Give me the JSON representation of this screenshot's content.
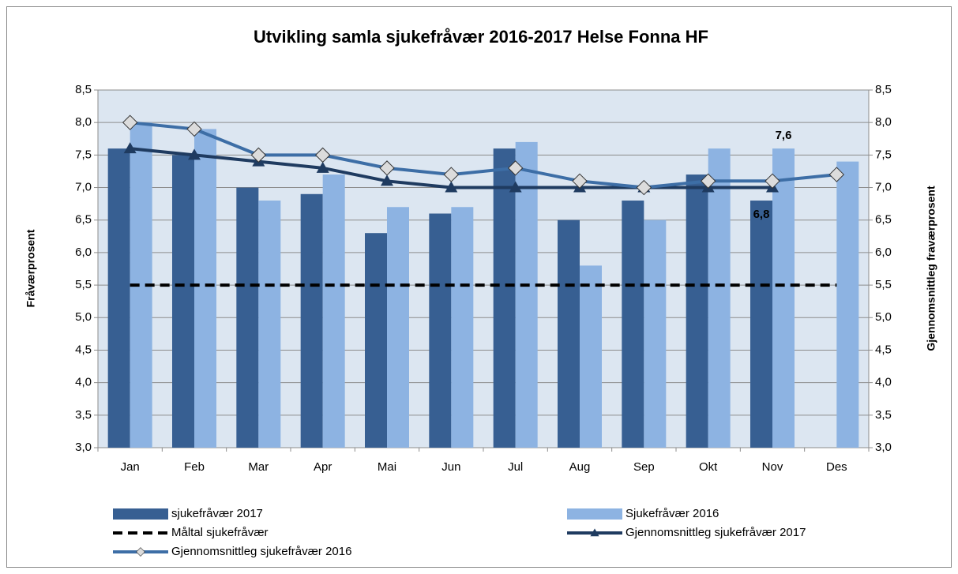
{
  "chart_data": {
    "type": "bar",
    "title": "Utvikling samla sjukefråvær 2016-2017 Helse Fonna HF",
    "y_label": "Fråværprosent",
    "y2_label": "Gjennomsnittleg fraværprosent",
    "categories": [
      "Jan",
      "Feb",
      "Mar",
      "Apr",
      "Mai",
      "Jun",
      "Jul",
      "Aug",
      "Sep",
      "Okt",
      "Nov",
      "Des"
    ],
    "series": [
      {
        "name": "sjukefråvær 2017",
        "type": "bar",
        "color": "#375f92",
        "values": [
          7.6,
          7.5,
          7.0,
          6.9,
          6.3,
          6.6,
          7.6,
          6.5,
          6.8,
          7.2,
          6.8,
          null
        ],
        "value_labels": [
          null,
          null,
          null,
          null,
          null,
          null,
          null,
          null,
          null,
          null,
          "6,8",
          null
        ]
      },
      {
        "name": "Sjukefråvær 2016",
        "type": "bar",
        "color": "#8db3e2",
        "values": [
          8.0,
          7.9,
          6.8,
          7.2,
          6.7,
          6.7,
          7.7,
          5.8,
          6.5,
          7.6,
          7.6,
          7.4
        ],
        "value_labels": [
          null,
          null,
          null,
          null,
          null,
          null,
          null,
          null,
          null,
          null,
          "7,6",
          null
        ]
      },
      {
        "name": "Måltal sjukefråvær",
        "type": "line",
        "style": "dashed",
        "color": "#000000",
        "values": [
          5.5,
          5.5,
          5.5,
          5.5,
          5.5,
          5.5,
          5.5,
          5.5,
          5.5,
          5.5,
          5.5,
          5.5
        ]
      },
      {
        "name": "Gjennomsnittleg sjukefråvær 2017",
        "type": "line",
        "marker": "triangle",
        "color": "#1f3b60",
        "axis": "y2",
        "values": [
          7.6,
          7.5,
          7.4,
          7.3,
          7.1,
          7.0,
          7.0,
          7.0,
          7.0,
          7.0,
          7.0,
          null
        ]
      },
      {
        "name": "Gjennomsnittleg sjukefråvær  2016",
        "type": "line",
        "marker": "diamond",
        "color": "#3d6ea6",
        "axis": "y2",
        "values": [
          8.0,
          7.9,
          7.5,
          7.5,
          7.3,
          7.2,
          7.3,
          7.1,
          7.0,
          7.1,
          7.1,
          7.2
        ]
      }
    ],
    "ylim": [
      3.0,
      8.5
    ],
    "yticks": [
      {
        "value": 3.0,
        "label": "3,0"
      },
      {
        "value": 3.5,
        "label": "3,5"
      },
      {
        "value": 4.0,
        "label": "4,0"
      },
      {
        "value": 4.5,
        "label": "4,5"
      },
      {
        "value": 5.0,
        "label": "5,0"
      },
      {
        "value": 5.5,
        "label": "5,5"
      },
      {
        "value": 6.0,
        "label": "6,0"
      },
      {
        "value": 6.5,
        "label": "6,5"
      },
      {
        "value": 7.0,
        "label": "7,0"
      },
      {
        "value": 7.5,
        "label": "7,5"
      },
      {
        "value": 8.0,
        "label": "8,0"
      },
      {
        "value": 8.5,
        "label": "8,5"
      }
    ],
    "y2lim": [
      3.0,
      8.5
    ],
    "y2ticks": [
      {
        "value": 3.0,
        "label": "3,0"
      },
      {
        "value": 3.5,
        "label": "3,5"
      },
      {
        "value": 4.0,
        "label": "4,0"
      },
      {
        "value": 4.5,
        "label": "4,5"
      },
      {
        "value": 5.0,
        "label": "5,0"
      },
      {
        "value": 5.5,
        "label": "5,5"
      },
      {
        "value": 6.0,
        "label": "6,0"
      },
      {
        "value": 6.5,
        "label": "6,5"
      },
      {
        "value": 7.0,
        "label": "7,0"
      },
      {
        "value": 7.5,
        "label": "7,5"
      },
      {
        "value": 8.0,
        "label": "8,0"
      },
      {
        "value": 8.5,
        "label": "8,5"
      }
    ],
    "grid": true,
    "legend": "bottom"
  }
}
